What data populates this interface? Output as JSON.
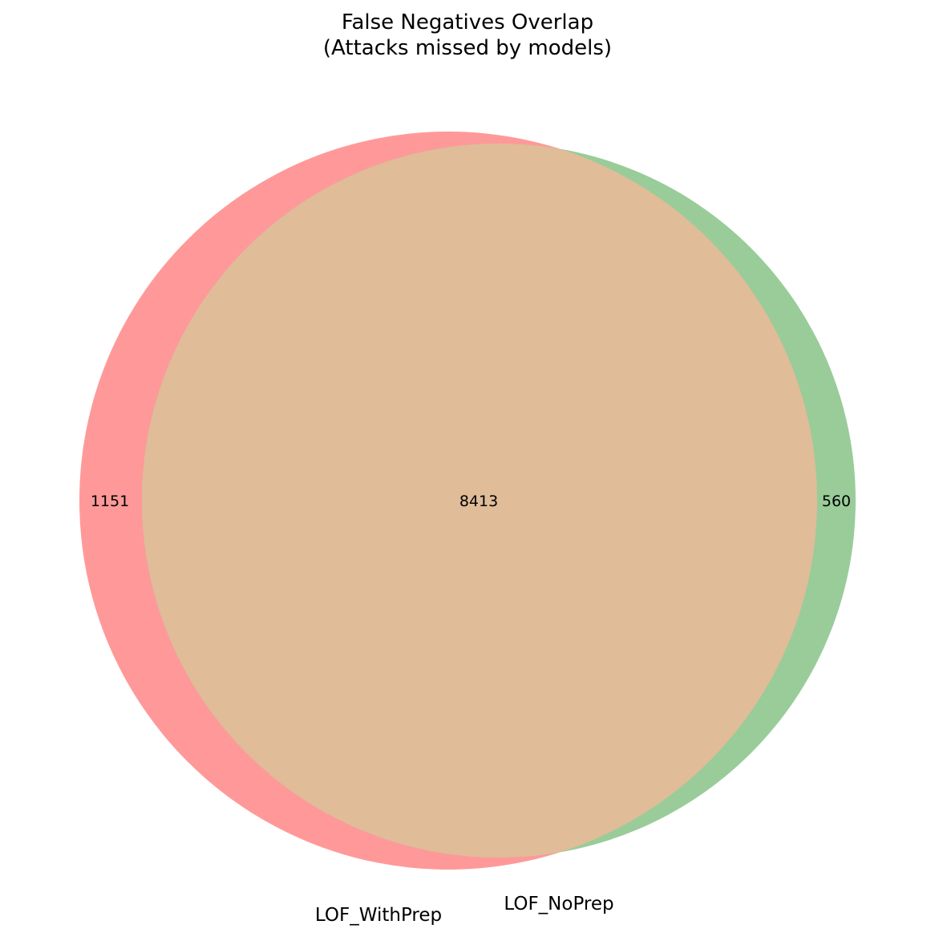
{
  "chart_data": {
    "type": "venn",
    "title": [
      "False Negatives Overlap",
      "(Attacks missed by models)"
    ],
    "sets": [
      {
        "name": "LOF_WithPrep",
        "color": "#ff9999"
      },
      {
        "name": "LOF_NoPrep",
        "color": "#99cc99"
      }
    ],
    "regions": {
      "only_LOF_WithPrep": 1151,
      "only_LOF_NoPrep": 560,
      "both": 8413
    },
    "overlap_color": "#e0bc99"
  }
}
